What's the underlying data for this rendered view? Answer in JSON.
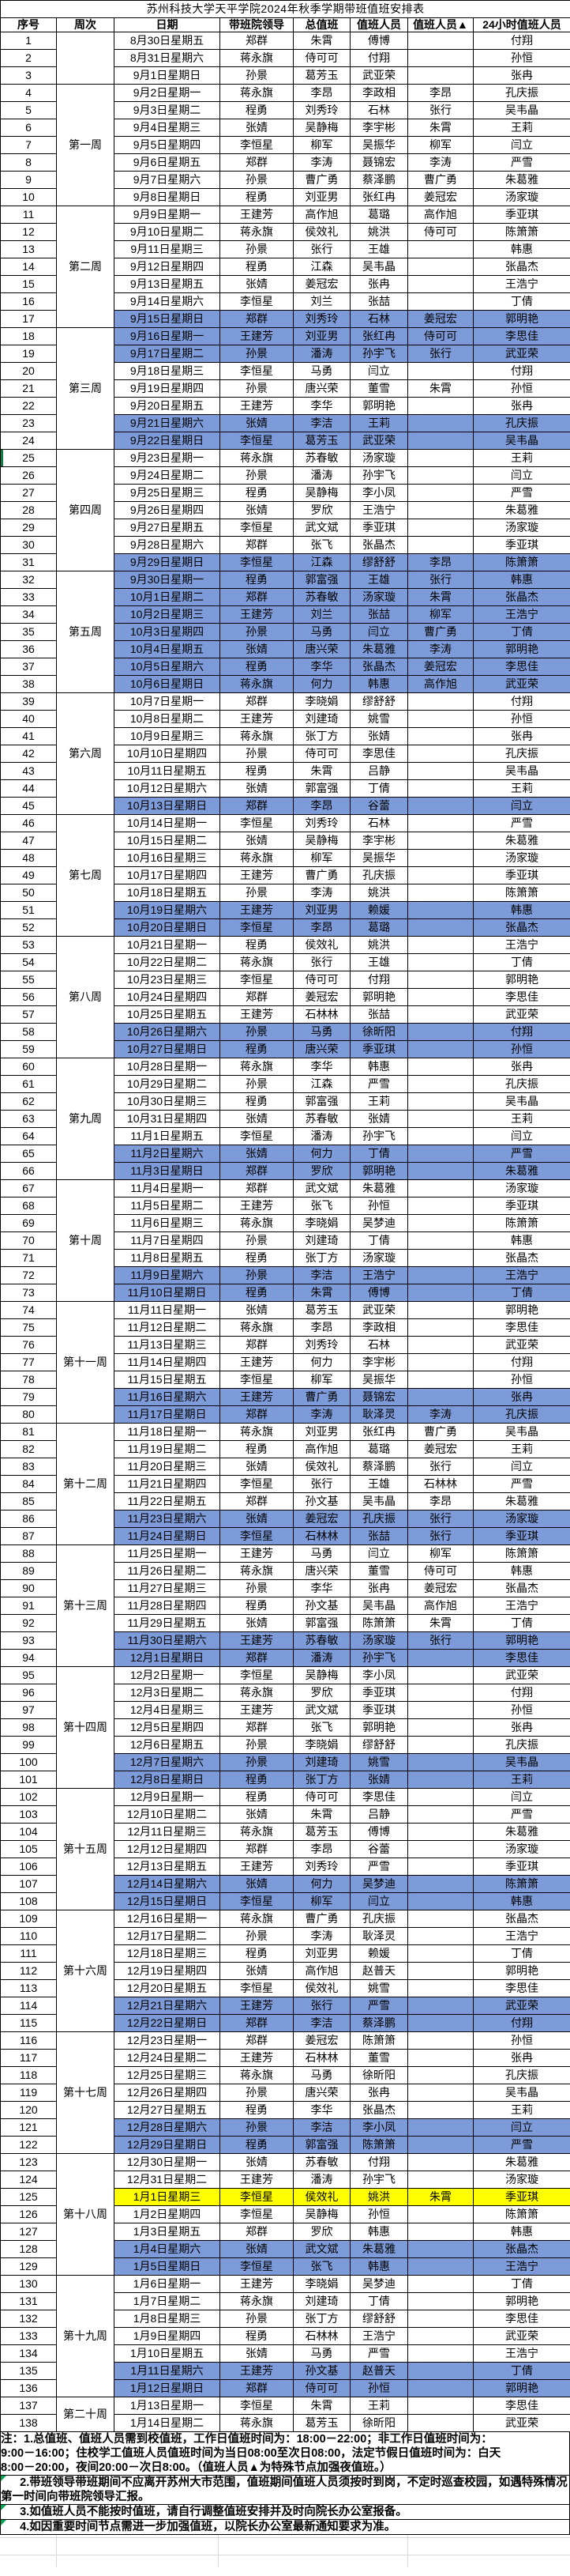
{
  "title": "苏州科技大学天平学院2024年秋季学期带班值班安排表",
  "columns": [
    "序号",
    "周次",
    "日期",
    "带班院领导",
    "总值班",
    "值班人员",
    "值班人员▲",
    "24小时值班人员"
  ],
  "weeks": [
    {
      "label": "",
      "start": 1,
      "end": 3
    },
    {
      "label": "第一周",
      "start": 4,
      "end": 10
    },
    {
      "label": "第二周",
      "start": 11,
      "end": 17
    },
    {
      "label": "第三周",
      "start": 18,
      "end": 24
    },
    {
      "label": "第四周",
      "start": 25,
      "end": 31
    },
    {
      "label": "第五周",
      "start": 32,
      "end": 38
    },
    {
      "label": "第六周",
      "start": 39,
      "end": 45
    },
    {
      "label": "第七周",
      "start": 46,
      "end": 52
    },
    {
      "label": "第八周",
      "start": 53,
      "end": 59
    },
    {
      "label": "第九周",
      "start": 60,
      "end": 66
    },
    {
      "label": "第十周",
      "start": 67,
      "end": 73
    },
    {
      "label": "第十一周",
      "start": 74,
      "end": 80
    },
    {
      "label": "第十二周",
      "start": 81,
      "end": 87
    },
    {
      "label": "第十三周",
      "start": 88,
      "end": 94
    },
    {
      "label": "第十四周",
      "start": 95,
      "end": 101
    },
    {
      "label": "第十五周",
      "start": 102,
      "end": 108
    },
    {
      "label": "第十六周",
      "start": 109,
      "end": 115
    },
    {
      "label": "第十七周",
      "start": 116,
      "end": 122
    },
    {
      "label": "第十八周",
      "start": 123,
      "end": 129
    },
    {
      "label": "第十九周",
      "start": 130,
      "end": 136
    },
    {
      "label": "第二十周",
      "start": 137,
      "end": 138
    }
  ],
  "row_format": [
    "date",
    "leader",
    "duty_chief",
    "duty_staff",
    "duty_staff_night",
    "duty_24h",
    "highlight"
  ],
  "rows": [
    [
      "8月30日星期五",
      "郑群",
      "朱霄",
      "傅博",
      "",
      "付翔",
      ""
    ],
    [
      "8月31日星期六",
      "蒋永旗",
      "侍可可",
      "付翔",
      "",
      "孙恒",
      ""
    ],
    [
      "9月1日星期日",
      "孙景",
      "葛芳玉",
      "武亚荣",
      "",
      "张冉",
      ""
    ],
    [
      "9月2日星期一",
      "蒋永旗",
      "李昂",
      "李政相",
      "李昂",
      "孔庆振",
      ""
    ],
    [
      "9月3日星期二",
      "程勇",
      "刘秀玲",
      "石林",
      "张行",
      "吴韦晶",
      ""
    ],
    [
      "9月4日星期三",
      "张婧",
      "吴静梅",
      "李宇彬",
      "朱霄",
      "王莉",
      ""
    ],
    [
      "9月5日星期四",
      "李恒星",
      "柳军",
      "吴振华",
      "柳军",
      "闫立",
      ""
    ],
    [
      "9月6日星期五",
      "郑群",
      "李涛",
      "聂锦宏",
      "李涛",
      "严雪",
      ""
    ],
    [
      "9月7日星期六",
      "孙景",
      "曹广勇",
      "蔡泽鹏",
      "曹广勇",
      "朱葛雅",
      ""
    ],
    [
      "9月8日星期日",
      "程勇",
      "刘亚男",
      "张红冉",
      "姜冠宏",
      "汤家璇",
      ""
    ],
    [
      "9月9日星期一",
      "王建芳",
      "高作旭",
      "葛璐",
      "高作旭",
      "季亚琪",
      ""
    ],
    [
      "9月10日星期二",
      "蒋永旗",
      "侯效礼",
      "姚洪",
      "侍可可",
      "陈箫箫",
      ""
    ],
    [
      "9月11日星期三",
      "孙景",
      "张行",
      "王雄",
      "",
      "韩惠",
      ""
    ],
    [
      "9月12日星期四",
      "程勇",
      "江森",
      "吴韦晶",
      "",
      "张晶杰",
      ""
    ],
    [
      "9月13日星期五",
      "张婧",
      "姜冠宏",
      "张冉",
      "",
      "王浩宁",
      ""
    ],
    [
      "9月14日星期六",
      "李恒星",
      "刘兰",
      "张喆",
      "",
      "丁倩",
      ""
    ],
    [
      "9月15日星期日",
      "郑群",
      "刘秀玲",
      "石林",
      "姜冠宏",
      "郭明艳",
      "b"
    ],
    [
      "9月16日星期一",
      "王建芳",
      "刘亚男",
      "张红冉",
      "侍可可",
      "李思佳",
      "b"
    ],
    [
      "9月17日星期二",
      "孙景",
      "潘涛",
      "孙宇飞",
      "张行",
      "武亚荣",
      "b"
    ],
    [
      "9月18日星期三",
      "李恒星",
      "马勇",
      "闫立",
      "",
      "付翔",
      ""
    ],
    [
      "9月19日星期四",
      "孙景",
      "唐兴荣",
      "董雪",
      "朱霄",
      "孙恒",
      ""
    ],
    [
      "9月20日星期五",
      "王建芳",
      "李华",
      "郭明艳",
      "",
      "张冉",
      ""
    ],
    [
      "9月21日星期六",
      "张婧",
      "李洁",
      "王莉",
      "",
      "孔庆振",
      "b"
    ],
    [
      "9月22日星期日",
      "李恒星",
      "葛芳玉",
      "武亚荣",
      "",
      "吴韦晶",
      "b"
    ],
    [
      "9月23日星期一",
      "蒋永旗",
      "苏春敏",
      "汤家璇",
      "",
      "王莉",
      ""
    ],
    [
      "9月24日星期二",
      "孙景",
      "潘涛",
      "孙宇飞",
      "",
      "闫立",
      ""
    ],
    [
      "9月25日星期三",
      "程勇",
      "吴静梅",
      "李小凤",
      "",
      "严雪",
      ""
    ],
    [
      "9月26日星期四",
      "张婧",
      "罗欣",
      "王浩宁",
      "",
      "朱葛雅",
      ""
    ],
    [
      "9月27日星期五",
      "李恒星",
      "武文斌",
      "季亚琪",
      "",
      "汤家璇",
      ""
    ],
    [
      "9月28日星期六",
      "郑群",
      "张飞",
      "张晶杰",
      "",
      "季亚琪",
      ""
    ],
    [
      "9月29日星期日",
      "李恒星",
      "江森",
      "缪舒舒",
      "李昂",
      "陈箫箫",
      "b"
    ],
    [
      "9月30日星期一",
      "程勇",
      "郭富强",
      "王雄",
      "张行",
      "韩惠",
      "b"
    ],
    [
      "10月1日星期二",
      "郑群",
      "苏春敏",
      "汤家璇",
      "朱霄",
      "张晶杰",
      "b"
    ],
    [
      "10月2日星期三",
      "王建芳",
      "刘兰",
      "张喆",
      "柳军",
      "王浩宁",
      "b"
    ],
    [
      "10月3日星期四",
      "孙景",
      "马勇",
      "闫立",
      "曹广勇",
      "丁倩",
      "b"
    ],
    [
      "10月4日星期五",
      "张婧",
      "唐兴荣",
      "朱葛雅",
      "李涛",
      "郭明艳",
      "b"
    ],
    [
      "10月5日星期六",
      "程勇",
      "李华",
      "张晶杰",
      "姜冠宏",
      "李思佳",
      "b"
    ],
    [
      "10月6日星期日",
      "蒋永旗",
      "何力",
      "韩惠",
      "高作旭",
      "武亚荣",
      "b"
    ],
    [
      "10月7日星期一",
      "郑群",
      "李晓娟",
      "缪舒舒",
      "",
      "付翔",
      ""
    ],
    [
      "10月8日星期二",
      "王建芳",
      "刘建琦",
      "姚雪",
      "",
      "孙恒",
      ""
    ],
    [
      "10月9日星期三",
      "蒋永旗",
      "张丁方",
      "张婧",
      "",
      "张冉",
      ""
    ],
    [
      "10月10日星期四",
      "孙景",
      "侍可可",
      "李思佳",
      "",
      "孔庆振",
      ""
    ],
    [
      "10月11日星期五",
      "程勇",
      "朱霄",
      "吕静",
      "",
      "吴韦晶",
      ""
    ],
    [
      "10月12日星期六",
      "张婧",
      "郭富强",
      "丁倩",
      "",
      "王莉",
      ""
    ],
    [
      "10月13日星期日",
      "郑群",
      "李昂",
      "谷蕾",
      "",
      "闫立",
      "b"
    ],
    [
      "10月14日星期一",
      "李恒星",
      "刘秀玲",
      "石林",
      "",
      "严雪",
      ""
    ],
    [
      "10月15日星期二",
      "张婧",
      "吴静梅",
      "李宇彬",
      "",
      "朱葛雅",
      ""
    ],
    [
      "10月16日星期三",
      "蒋永旗",
      "柳军",
      "吴振华",
      "",
      "汤家璇",
      ""
    ],
    [
      "10月17日星期四",
      "王建芳",
      "曹广勇",
      "孔庆振",
      "",
      "季亚琪",
      ""
    ],
    [
      "10月18日星期五",
      "孙景",
      "李涛",
      "姚洪",
      "",
      "陈箫箫",
      ""
    ],
    [
      "10月19日星期六",
      "王建芳",
      "刘亚男",
      "赖媛",
      "",
      "韩惠",
      "b"
    ],
    [
      "10月20日星期日",
      "李恒星",
      "李昂",
      "葛璐",
      "",
      "张晶杰",
      "b"
    ],
    [
      "10月21日星期一",
      "程勇",
      "侯效礼",
      "姚洪",
      "",
      "王浩宁",
      ""
    ],
    [
      "10月22日星期二",
      "蒋永旗",
      "张行",
      "王雄",
      "",
      "丁倩",
      ""
    ],
    [
      "10月23日星期三",
      "李恒星",
      "侍可可",
      "付翔",
      "",
      "郭明艳",
      ""
    ],
    [
      "10月24日星期四",
      "郑群",
      "姜冠宏",
      "郭明艳",
      "",
      "李思佳",
      ""
    ],
    [
      "10月25日星期五",
      "王建芳",
      "石林林",
      "张喆",
      "",
      "武亚荣",
      ""
    ],
    [
      "10月26日星期六",
      "孙景",
      "马勇",
      "徐昕阳",
      "",
      "付翔",
      "b"
    ],
    [
      "10月27日星期日",
      "程勇",
      "唐兴荣",
      "季亚琪",
      "",
      "孙恒",
      "b"
    ],
    [
      "10月28日星期一",
      "蒋永旗",
      "李华",
      "韩惠",
      "",
      "张冉",
      ""
    ],
    [
      "10月29日星期二",
      "孙景",
      "江森",
      "严雪",
      "",
      "孔庆振",
      ""
    ],
    [
      "10月30日星期三",
      "程勇",
      "郭富强",
      "王莉",
      "",
      "吴韦晶",
      ""
    ],
    [
      "10月31日星期四",
      "张婧",
      "苏春敏",
      "张婧",
      "",
      "王莉",
      ""
    ],
    [
      "11月1日星期五",
      "李恒星",
      "潘涛",
      "孙宇飞",
      "",
      "闫立",
      ""
    ],
    [
      "11月2日星期六",
      "张婧",
      "何力",
      "丁倩",
      "",
      "严雪",
      "b"
    ],
    [
      "11月3日星期日",
      "郑群",
      "罗欣",
      "郭明艳",
      "",
      "朱葛雅",
      "b"
    ],
    [
      "11月4日星期一",
      "郑群",
      "武文斌",
      "朱葛雅",
      "",
      "汤家璇",
      ""
    ],
    [
      "11月5日星期二",
      "王建芳",
      "张飞",
      "孙恒",
      "",
      "季亚琪",
      ""
    ],
    [
      "11月6日星期三",
      "蒋永旗",
      "李晓娟",
      "吴梦迪",
      "",
      "陈箫箫",
      ""
    ],
    [
      "11月7日星期四",
      "孙景",
      "刘建琦",
      "丁倩",
      "",
      "韩惠",
      ""
    ],
    [
      "11月8日星期五",
      "程勇",
      "张丁方",
      "汤家璇",
      "",
      "张晶杰",
      ""
    ],
    [
      "11月9日星期六",
      "孙景",
      "李洁",
      "王浩宁",
      "",
      "王浩宁",
      "b"
    ],
    [
      "11月10日星期日",
      "程勇",
      "朱霄",
      "傅博",
      "",
      "丁倩",
      "b"
    ],
    [
      "11月11日星期一",
      "张婧",
      "葛芳玉",
      "武亚荣",
      "",
      "郭明艳",
      ""
    ],
    [
      "11月12日星期二",
      "蒋永旗",
      "李昂",
      "李政相",
      "",
      "李思佳",
      ""
    ],
    [
      "11月13日星期三",
      "郑群",
      "刘秀玲",
      "石林",
      "",
      "武亚荣",
      ""
    ],
    [
      "11月14日星期四",
      "王建芳",
      "何力",
      "李宇彬",
      "",
      "付翔",
      ""
    ],
    [
      "11月15日星期五",
      "李恒星",
      "柳军",
      "吴振华",
      "",
      "孙恒",
      ""
    ],
    [
      "11月16日星期六",
      "王建芳",
      "曹广勇",
      "聂锦宏",
      "",
      "张冉",
      "b"
    ],
    [
      "11月17日星期日",
      "郑群",
      "李涛",
      "耿泽灵",
      "李涛",
      "孔庆振",
      "b"
    ],
    [
      "11月18日星期一",
      "蒋永旗",
      "刘亚男",
      "张红冉",
      "曹广勇",
      "吴韦晶",
      ""
    ],
    [
      "11月19日星期二",
      "程勇",
      "高作旭",
      "葛璐",
      "姜冠宏",
      "王莉",
      ""
    ],
    [
      "11月20日星期三",
      "张婧",
      "侯效礼",
      "蔡泽鹏",
      "张行",
      "闫立",
      ""
    ],
    [
      "11月21日星期四",
      "李恒星",
      "张行",
      "王雄",
      "石林林",
      "严雪",
      ""
    ],
    [
      "11月22日星期五",
      "郑群",
      "孙文基",
      "吴韦晶",
      "李昂",
      "朱葛雅",
      ""
    ],
    [
      "11月23日星期六",
      "张婧",
      "姜冠宏",
      "孔庆振",
      "张行",
      "汤家璇",
      "b"
    ],
    [
      "11月24日星期日",
      "李恒星",
      "石林林",
      "张喆",
      "张行",
      "季亚琪",
      "b"
    ],
    [
      "11月25日星期一",
      "王建芳",
      "马勇",
      "闫立",
      "柳军",
      "陈箫箫",
      ""
    ],
    [
      "11月26日星期二",
      "蒋永旗",
      "唐兴荣",
      "董雪",
      "侍可可",
      "韩惠",
      ""
    ],
    [
      "11月27日星期三",
      "孙景",
      "李华",
      "张冉",
      "姜冠宏",
      "张晶杰",
      ""
    ],
    [
      "11月28日星期四",
      "程勇",
      "孙文基",
      "吴韦晶",
      "高作旭",
      "王浩宁",
      ""
    ],
    [
      "11月29日星期五",
      "张婧",
      "郭富强",
      "陈箫箫",
      "朱霄",
      "丁倩",
      ""
    ],
    [
      "11月30日星期六",
      "王建芳",
      "苏春敏",
      "汤家璇",
      "张行",
      "郭明艳",
      "b"
    ],
    [
      "12月1日星期日",
      "郑群",
      "潘涛",
      "孙宇飞",
      "",
      "李思佳",
      "b"
    ],
    [
      "12月2日星期一",
      "李恒星",
      "吴静梅",
      "李小凤",
      "",
      "武亚荣",
      ""
    ],
    [
      "12月3日星期二",
      "蒋永旗",
      "罗欣",
      "季亚琪",
      "",
      "付翔",
      ""
    ],
    [
      "12月4日星期三",
      "王建芳",
      "武文斌",
      "季亚琪",
      "",
      "孙恒",
      ""
    ],
    [
      "12月5日星期四",
      "郑群",
      "张飞",
      "郭明艳",
      "",
      "张冉",
      ""
    ],
    [
      "12月6日星期五",
      "孙景",
      "李晓娟",
      "缪舒舒",
      "",
      "孔庆振",
      ""
    ],
    [
      "12月7日星期六",
      "孙景",
      "刘建琦",
      "姚雪",
      "",
      "吴韦晶",
      "b"
    ],
    [
      "12月8日星期日",
      "程勇",
      "张丁方",
      "张婧",
      "",
      "王莉",
      "b"
    ],
    [
      "12月9日星期一",
      "程勇",
      "侍可可",
      "李思佳",
      "",
      "闫立",
      ""
    ],
    [
      "12月10日星期二",
      "张婧",
      "朱霄",
      "吕静",
      "",
      "严雪",
      ""
    ],
    [
      "12月11日星期三",
      "蒋永旗",
      "葛芳玉",
      "傅博",
      "",
      "朱葛雅",
      ""
    ],
    [
      "12月12日星期四",
      "郑群",
      "李昂",
      "谷蕾",
      "",
      "汤家璇",
      ""
    ],
    [
      "12月13日星期五",
      "王建芳",
      "刘秀玲",
      "严雪",
      "",
      "季亚琪",
      ""
    ],
    [
      "12月14日星期六",
      "张婧",
      "何力",
      "吴梦迪",
      "",
      "陈箫箫",
      "b"
    ],
    [
      "12月15日星期日",
      "李恒星",
      "柳军",
      "闫立",
      "",
      "韩惠",
      "b"
    ],
    [
      "12月16日星期一",
      "蒋永旗",
      "曹广勇",
      "孔庆振",
      "",
      "张晶杰",
      ""
    ],
    [
      "12月17日星期二",
      "孙景",
      "李涛",
      "耿泽灵",
      "",
      "王浩宁",
      ""
    ],
    [
      "12月18日星期三",
      "程勇",
      "刘亚男",
      "赖媛",
      "",
      "丁倩",
      ""
    ],
    [
      "12月19日星期四",
      "张婧",
      "高作旭",
      "赵普天",
      "",
      "郭明艳",
      ""
    ],
    [
      "12月20日星期五",
      "李恒星",
      "侯效礼",
      "姚雪",
      "",
      "李思佳",
      ""
    ],
    [
      "12月21日星期六",
      "王建芳",
      "张行",
      "严雪",
      "",
      "武亚荣",
      "b"
    ],
    [
      "12月22日星期日",
      "郑群",
      "李洁",
      "蔡泽鹏",
      "",
      "付翔",
      "b"
    ],
    [
      "12月23日星期一",
      "郑群",
      "姜冠宏",
      "陈箫箫",
      "",
      "孙恒",
      ""
    ],
    [
      "12月24日星期二",
      "王建芳",
      "石林林",
      "董雪",
      "",
      "张冉",
      ""
    ],
    [
      "12月25日星期三",
      "蒋永旗",
      "马勇",
      "徐昕阳",
      "",
      "孔庆振",
      ""
    ],
    [
      "12月26日星期四",
      "孙景",
      "唐兴荣",
      "张冉",
      "",
      "吴韦晶",
      ""
    ],
    [
      "12月27日星期五",
      "程勇",
      "李华",
      "张晶杰",
      "",
      "王莉",
      ""
    ],
    [
      "12月28日星期六",
      "孙景",
      "李洁",
      "李小凤",
      "",
      "闫立",
      "b"
    ],
    [
      "12月29日星期日",
      "程勇",
      "郭富强",
      "陈箫箫",
      "",
      "严雪",
      "b"
    ],
    [
      "12月30日星期一",
      "张婧",
      "苏春敏",
      "付翔",
      "",
      "朱葛雅",
      ""
    ],
    [
      "12月31日星期二",
      "王建芳",
      "潘涛",
      "孙宇飞",
      "",
      "汤家璇",
      ""
    ],
    [
      "1月1日星期三",
      "李恒星",
      "侯效礼",
      "姚洪",
      "朱霄",
      "季亚琪",
      "y"
    ],
    [
      "1月2日星期四",
      "李恒星",
      "吴静梅",
      "孙恒",
      "",
      "陈箫箫",
      ""
    ],
    [
      "1月3日星期五",
      "郑群",
      "罗欣",
      "韩惠",
      "",
      "韩惠",
      ""
    ],
    [
      "1月4日星期六",
      "张婧",
      "武文斌",
      "朱葛雅",
      "",
      "张晶杰",
      "b"
    ],
    [
      "1月5日星期日",
      "李恒星",
      "张飞",
      "韩惠",
      "",
      "王浩宁",
      "b"
    ],
    [
      "1月6日星期一",
      "王建芳",
      "李晓娟",
      "吴梦迪",
      "",
      "丁倩",
      ""
    ],
    [
      "1月7日星期二",
      "蒋永旗",
      "刘建琦",
      "丁倩",
      "",
      "郭明艳",
      ""
    ],
    [
      "1月8日星期三",
      "孙景",
      "张丁方",
      "缪舒舒",
      "",
      "李思佳",
      ""
    ],
    [
      "1月9日星期四",
      "程勇",
      "石林林",
      "王浩宁",
      "",
      "武亚荣",
      ""
    ],
    [
      "1月10日星期五",
      "张婧",
      "马勇",
      "严雪",
      "",
      "王浩宁",
      ""
    ],
    [
      "1月11日星期六",
      "王建芳",
      "孙文基",
      "赵普天",
      "",
      "丁倩",
      "b"
    ],
    [
      "1月12日星期日",
      "郑群",
      "侍可可",
      "孙恒",
      "",
      "郭明艳",
      "b"
    ],
    [
      "1月13日星期一",
      "李恒星",
      "朱霄",
      "王莉",
      "",
      "李思佳",
      ""
    ],
    [
      "1月14日星期二",
      "蒋永旗",
      "葛芳玉",
      "徐昕阳",
      "",
      "武亚荣",
      ""
    ]
  ],
  "notes": [
    {
      "lines": [
        "注：1.总值班、值班人员需到校值班，工作日值班时间为：18:00－22:00；非工作日值班时间为：",
        "9:00－16:00；住校学工值班人员值班时间为当日08:00至次日08:00，法定节假日值班时间为：白天",
        "8:00－20:00，夜间20:00－次日8:00。（值班人员▲为特殊节点加强夜值班。）"
      ],
      "marker": false
    },
    {
      "lines": [
        "      2.带班领导带班期间不应离开苏州大市范围，值班期间值班人员须按时到岗，不定时巡查校园，如遇特殊情况",
        "第一时间向带班院领导汇报。"
      ],
      "marker": true
    },
    {
      "lines": [
        "      3.如值班人员不能按时值班，请自行调整值班安排并及时向院长办公室报备。"
      ],
      "marker": true
    },
    {
      "lines": [
        "      4.如因重要时间节点需进一步加强值班，以院长办公室最新通知要求为准。"
      ],
      "marker": true
    }
  ],
  "selection_marker_row": 25,
  "colors": {
    "weekend_blue": "#7D9BD9",
    "holiday_yellow": "#FFFF00",
    "selection_green": "#107C41",
    "note_marker_green": "#00A651",
    "faint_grid": "#D9D9D9",
    "border_black": "#000000"
  }
}
